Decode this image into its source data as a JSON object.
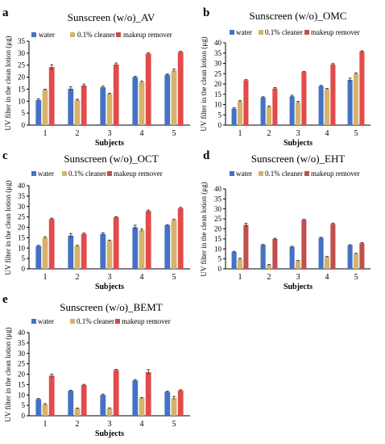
{
  "colors": {
    "water": "#4472c4",
    "cleaner": "#d6b26b",
    "remover_av": "#e34b4b",
    "remover_dark": "#c0504d",
    "axis": "#000000"
  },
  "legend_labels": [
    "water",
    "0.1% cleaner",
    "makeup remover"
  ],
  "chart_data": [
    {
      "type": "bar",
      "panel": "a",
      "title": "Sunscreen (w/o)_AV",
      "xlabel": "Subjects",
      "ylabel": "UV filter in the clean lotion (μg)",
      "categories": [
        "1",
        "2",
        "3",
        "4",
        "5"
      ],
      "ylim": [
        0,
        35
      ],
      "yticks": [
        "0",
        "5",
        "10",
        "15",
        "20",
        "25",
        "30",
        "35"
      ],
      "legend_position": "top",
      "series": [
        {
          "name": "water",
          "color": "#4472c4",
          "values": [
            10.5,
            15.2,
            15.8,
            20.0,
            21.0
          ],
          "errors": [
            0.5,
            0.8,
            0.5,
            0.4,
            0.4
          ]
        },
        {
          "name": "0.1% cleaner",
          "color": "#d6b26b",
          "values": [
            14.7,
            10.5,
            13.0,
            18.0,
            22.8
          ],
          "errors": [
            0.3,
            0.3,
            0.3,
            0.3,
            0.6
          ]
        },
        {
          "name": "makeup remover",
          "color": "#e34b4b",
          "values": [
            24.2,
            16.5,
            25.3,
            29.8,
            30.5
          ],
          "errors": [
            1.0,
            0.6,
            0.6,
            0.3,
            0.3
          ]
        }
      ]
    },
    {
      "type": "bar",
      "panel": "b",
      "title": "Sunscreen (w/o)_OMC",
      "xlabel": "Subjects",
      "ylabel": "UV filter in the clean lotion (μg)",
      "categories": [
        "1",
        "2",
        "3",
        "4",
        "5"
      ],
      "ylim": [
        0,
        40
      ],
      "yticks": [
        "0",
        "5",
        "10",
        "15",
        "20",
        "25",
        "30",
        "35",
        "40"
      ],
      "legend_position": "top",
      "series": [
        {
          "name": "water",
          "color": "#4472c4",
          "values": [
            8.0,
            13.5,
            14.0,
            19.0,
            22.0
          ],
          "errors": [
            0.4,
            0.3,
            0.5,
            0.3,
            0.8
          ]
        },
        {
          "name": "0.1% cleaner",
          "color": "#d6b26b",
          "values": [
            11.5,
            9.0,
            11.2,
            17.5,
            25.0
          ],
          "errors": [
            0.5,
            0.3,
            0.3,
            0.3,
            0.4
          ]
        },
        {
          "name": "makeup remover",
          "color": "#e34b4b",
          "values": [
            21.8,
            17.8,
            25.8,
            29.5,
            35.8
          ],
          "errors": [
            0.3,
            0.5,
            0.3,
            0.4,
            0.3
          ]
        }
      ]
    },
    {
      "type": "bar",
      "panel": "c",
      "title": "Sunscreen (w/o)_OCT",
      "xlabel": "Subjects",
      "ylabel": "UV filter in the clean lotion (μg)",
      "categories": [
        "1",
        "2",
        "3",
        "4",
        "5"
      ],
      "ylim": [
        0,
        40
      ],
      "yticks": [
        "0",
        "5",
        "10",
        "15",
        "20",
        "25",
        "30",
        "35",
        "40"
      ],
      "legend_position": "top",
      "series": [
        {
          "name": "water",
          "color": "#4472c4",
          "values": [
            11.0,
            16.0,
            16.8,
            20.0,
            21.0
          ],
          "errors": [
            0.3,
            1.0,
            0.6,
            1.0,
            0.3
          ]
        },
        {
          "name": "0.1% cleaner",
          "color": "#d6b26b",
          "values": [
            15.0,
            11.0,
            13.5,
            18.5,
            23.5
          ],
          "errors": [
            0.4,
            0.3,
            0.3,
            0.6,
            0.3
          ]
        },
        {
          "name": "makeup remover",
          "color": "#e34b4b",
          "values": [
            24.0,
            16.8,
            24.8,
            27.8,
            29.2
          ],
          "errors": [
            0.4,
            0.4,
            0.3,
            0.5,
            0.4
          ]
        }
      ]
    },
    {
      "type": "bar",
      "panel": "d",
      "title": "Sunscreen (w/o)_EHT",
      "xlabel": "Subjects",
      "ylabel": "UV filter in the clean lotion (μg)",
      "categories": [
        "1",
        "2",
        "3",
        "4",
        "5"
      ],
      "ylim": [
        0,
        40
      ],
      "yticks": [
        "0",
        "5",
        "10",
        "15",
        "20",
        "25",
        "30",
        "35",
        "40"
      ],
      "legend_position": "top",
      "series": [
        {
          "name": "water",
          "color": "#4472c4",
          "values": [
            8.5,
            12.0,
            11.0,
            15.5,
            11.8
          ],
          "errors": [
            0.3,
            0.2,
            0.3,
            0.3,
            0.3
          ]
        },
        {
          "name": "0.1% cleaner",
          "color": "#d6b26b",
          "values": [
            5.0,
            2.0,
            4.0,
            6.0,
            7.5
          ],
          "errors": [
            0.3,
            0.2,
            0.2,
            0.2,
            0.3
          ]
        },
        {
          "name": "makeup remover",
          "color": "#c0504d",
          "values": [
            22.0,
            15.0,
            24.5,
            22.5,
            12.8
          ],
          "errors": [
            0.8,
            0.3,
            0.3,
            0.3,
            0.3
          ]
        }
      ]
    },
    {
      "type": "bar",
      "panel": "e",
      "title": "Sunscreen (w/o)_BEMT",
      "xlabel": "Subjects",
      "ylabel": "UV filter in the clean lotion (μg)",
      "categories": [
        "1",
        "2",
        "3",
        "4",
        "5"
      ],
      "ylim": [
        0,
        40
      ],
      "yticks": [
        "0",
        "5",
        "10",
        "15",
        "20",
        "25",
        "30",
        "35",
        "40"
      ],
      "legend_position": "top",
      "series": [
        {
          "name": "water",
          "color": "#4472c4",
          "values": [
            8.0,
            12.0,
            10.0,
            17.0,
            11.5
          ],
          "errors": [
            0.3,
            0.3,
            0.4,
            0.4,
            0.3
          ]
        },
        {
          "name": "0.1% cleaner",
          "color": "#d6b26b",
          "values": [
            5.5,
            3.5,
            3.5,
            8.5,
            8.5
          ],
          "errors": [
            0.3,
            0.2,
            0.3,
            0.3,
            0.8
          ]
        },
        {
          "name": "makeup remover",
          "color": "#e34b4b",
          "values": [
            19.3,
            14.8,
            22.0,
            21.0,
            12.2
          ],
          "errors": [
            0.8,
            0.3,
            0.3,
            1.2,
            0.3
          ]
        }
      ]
    }
  ]
}
